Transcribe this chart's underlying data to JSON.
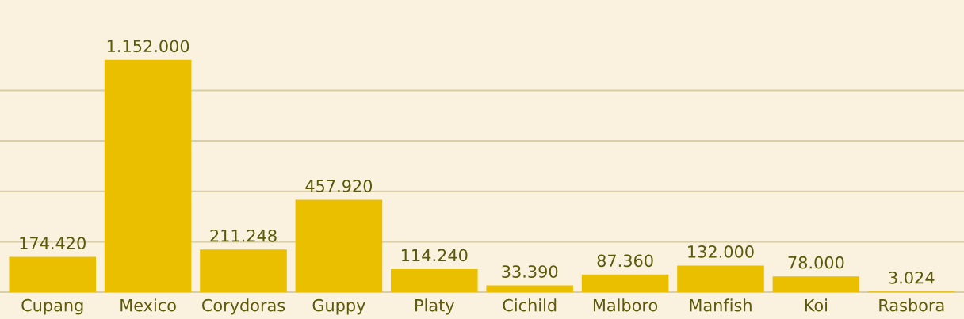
{
  "chart_data": {
    "type": "bar",
    "categories": [
      "Cupang",
      "Mexico",
      "Corydoras",
      "Guppy",
      "Platy",
      "Cichild",
      "Malboro",
      "Manfish",
      "Koi",
      "Rasbora"
    ],
    "values": [
      174420,
      1152000,
      211248,
      457920,
      114240,
      33390,
      87360,
      132000,
      78000,
      3024
    ],
    "value_labels": [
      "174.420",
      "1.152.000",
      "211.248",
      "457.920",
      "114.240",
      "33.390",
      "87.360",
      "132.000",
      "78.000",
      "3.024"
    ],
    "color": "#e9bf00",
    "ref_lines": [
      {
        "axis": "y",
        "value": 250000,
        "color": "#d8cfa8"
      },
      {
        "axis": "y",
        "value": 500000,
        "color": "#d8cfa8"
      },
      {
        "axis": "y",
        "value": 750000,
        "color": "#d8cfa8"
      },
      {
        "axis": "y",
        "value": 1000000,
        "color": "#d8cfa8"
      }
    ]
  }
}
